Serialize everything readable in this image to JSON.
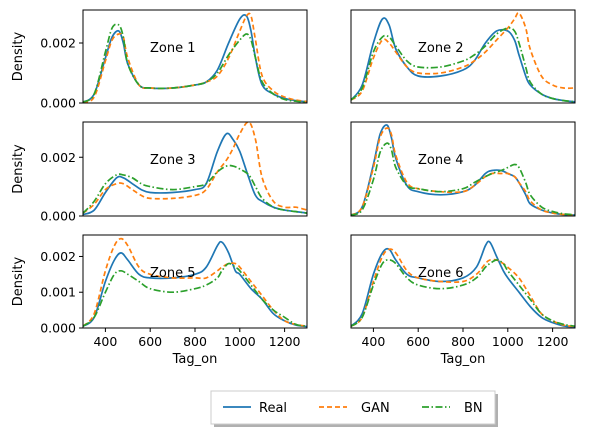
{
  "figure": {
    "ylabel": "Density",
    "xlabel": "Tag_on"
  },
  "legend": {
    "placement": "bottom-center",
    "items": [
      {
        "label": "Real",
        "color": "#1f77b4",
        "style": "solid"
      },
      {
        "label": "GAN",
        "color": "#ff7f0e",
        "style": "dashed"
      },
      {
        "label": "BN",
        "color": "#2ca02c",
        "style": "dashdot"
      }
    ]
  },
  "chart_data": [
    {
      "type": "line",
      "title": "Zone 1",
      "xlim": [
        300,
        1300
      ],
      "ylim": [
        0,
        0.0031
      ],
      "yticks": [
        0,
        0.002
      ],
      "ytick_labels": [
        "0.000",
        "0.002"
      ],
      "x": [
        300,
        350,
        400,
        430,
        460,
        480,
        500,
        550,
        600,
        700,
        800,
        850,
        900,
        950,
        1000,
        1030,
        1050,
        1070,
        1100,
        1150,
        1200,
        1250,
        1300
      ],
      "series": [
        {
          "name": "Real",
          "values": [
            3e-05,
            0.0003,
            0.0015,
            0.0022,
            0.0024,
            0.002,
            0.0013,
            0.0006,
            0.0005,
            0.0005,
            0.0006,
            0.0007,
            0.0011,
            0.002,
            0.0028,
            0.0029,
            0.0024,
            0.0015,
            0.0006,
            0.0003,
            0.00015,
            8e-05,
            4e-05
          ]
        },
        {
          "name": "GAN",
          "values": [
            3e-05,
            0.0002,
            0.0014,
            0.0021,
            0.0023,
            0.0022,
            0.0015,
            0.0006,
            0.0005,
            0.0005,
            0.0006,
            0.0007,
            0.0009,
            0.0015,
            0.0024,
            0.0029,
            0.0029,
            0.0021,
            0.0009,
            0.0004,
            0.0002,
            0.0001,
            5e-05
          ]
        },
        {
          "name": "BN",
          "values": [
            3e-05,
            0.0003,
            0.0017,
            0.0025,
            0.0026,
            0.0022,
            0.0013,
            0.0006,
            0.0005,
            0.0005,
            0.0006,
            0.0007,
            0.001,
            0.0016,
            0.0021,
            0.0023,
            0.0021,
            0.0015,
            0.0007,
            0.0003,
            0.00012,
            6e-05,
            3e-05
          ]
        }
      ]
    },
    {
      "type": "line",
      "title": "Zone 2",
      "xlim": [
        300,
        1300
      ],
      "ylim": [
        0,
        0.0031
      ],
      "yticks": [],
      "ytick_labels": [],
      "x": [
        300,
        350,
        400,
        440,
        470,
        500,
        550,
        600,
        700,
        800,
        850,
        900,
        950,
        1000,
        1030,
        1050,
        1080,
        1100,
        1150,
        1200,
        1250,
        1300
      ],
      "series": [
        {
          "name": "Real",
          "values": [
            0.0001,
            0.0006,
            0.002,
            0.0028,
            0.0026,
            0.0018,
            0.0012,
            0.0009,
            0.0009,
            0.0011,
            0.0014,
            0.002,
            0.0024,
            0.0024,
            0.0021,
            0.0016,
            0.0009,
            0.0006,
            0.0003,
            0.00015,
            8e-05,
            4e-05
          ]
        },
        {
          "name": "GAN",
          "values": [
            0.0001,
            0.0004,
            0.0015,
            0.0021,
            0.002,
            0.0017,
            0.0012,
            0.001,
            0.001,
            0.0012,
            0.0014,
            0.0017,
            0.0021,
            0.0025,
            0.0028,
            0.003,
            0.0025,
            0.0018,
            0.0009,
            0.0006,
            0.0005,
            0.0005
          ]
        },
        {
          "name": "BN",
          "values": [
            0.0001,
            0.0005,
            0.0017,
            0.0022,
            0.0022,
            0.0019,
            0.0014,
            0.0012,
            0.0012,
            0.0014,
            0.0016,
            0.0019,
            0.0023,
            0.0025,
            0.0024,
            0.002,
            0.0012,
            0.0007,
            0.0003,
            0.00015,
            8e-05,
            4e-05
          ]
        }
      ]
    },
    {
      "type": "line",
      "title": "Zone 3",
      "xlim": [
        300,
        1300
      ],
      "ylim": [
        0,
        0.0032
      ],
      "yticks": [
        0,
        0.002
      ],
      "ytick_labels": [
        "0.000",
        "0.002"
      ],
      "x": [
        300,
        350,
        400,
        450,
        480,
        520,
        560,
        600,
        700,
        800,
        850,
        900,
        940,
        970,
        1000,
        1040,
        1070,
        1100,
        1150,
        1200,
        1250,
        1300
      ],
      "series": [
        {
          "name": "Real",
          "values": [
            5e-05,
            0.0002,
            0.0008,
            0.0013,
            0.0013,
            0.0011,
            0.0009,
            0.0008,
            0.0008,
            0.0009,
            0.0011,
            0.0022,
            0.0028,
            0.0026,
            0.0022,
            0.0013,
            0.0007,
            0.0005,
            0.0003,
            0.0002,
            0.00015,
            0.0001
          ]
        },
        {
          "name": "GAN",
          "values": [
            0.0001,
            0.0004,
            0.0009,
            0.0011,
            0.0011,
            0.0009,
            0.0007,
            0.0006,
            0.0006,
            0.0007,
            0.0009,
            0.0015,
            0.0019,
            0.0023,
            0.0028,
            0.0032,
            0.0026,
            0.0013,
            0.0005,
            0.0003,
            0.0003,
            0.0002
          ]
        },
        {
          "name": "BN",
          "values": [
            0.0001,
            0.0005,
            0.0011,
            0.0014,
            0.0014,
            0.0013,
            0.0011,
            0.001,
            0.0009,
            0.001,
            0.0011,
            0.0015,
            0.0017,
            0.0017,
            0.0016,
            0.0014,
            0.001,
            0.0006,
            0.0003,
            0.0002,
            0.00015,
            0.0001
          ]
        }
      ]
    },
    {
      "type": "line",
      "title": "Zone 4",
      "xlim": [
        300,
        1300
      ],
      "ylim": [
        0,
        0.0031
      ],
      "yticks": [],
      "ytick_labels": [],
      "x": [
        300,
        350,
        400,
        430,
        460,
        480,
        500,
        550,
        600,
        700,
        800,
        850,
        900,
        930,
        970,
        1000,
        1030,
        1050,
        1080,
        1100,
        1150,
        1200,
        1250,
        1300
      ],
      "series": [
        {
          "name": "Real",
          "values": [
            3e-05,
            0.0003,
            0.0017,
            0.0027,
            0.003,
            0.0026,
            0.0019,
            0.001,
            0.0008,
            0.0007,
            0.0008,
            0.001,
            0.0014,
            0.0015,
            0.0015,
            0.0014,
            0.0013,
            0.0011,
            0.0007,
            0.0004,
            0.0002,
            0.0001,
            5e-05,
            3e-05
          ]
        },
        {
          "name": "GAN",
          "values": [
            3e-05,
            0.0003,
            0.0016,
            0.0026,
            0.0029,
            0.0027,
            0.002,
            0.0011,
            0.0009,
            0.0008,
            0.0008,
            0.001,
            0.0013,
            0.0014,
            0.0014,
            0.0014,
            0.0013,
            0.0011,
            0.0008,
            0.0005,
            0.0002,
            0.0001,
            5e-05,
            3e-05
          ]
        },
        {
          "name": "BN",
          "values": [
            3e-05,
            0.0002,
            0.0012,
            0.0021,
            0.0024,
            0.0022,
            0.0016,
            0.001,
            0.0009,
            0.0008,
            0.0009,
            0.0011,
            0.0013,
            0.0014,
            0.0015,
            0.0016,
            0.0017,
            0.0016,
            0.0011,
            0.0007,
            0.0003,
            0.00015,
            7e-05,
            4e-05
          ]
        }
      ]
    },
    {
      "type": "line",
      "title": "Zone 5",
      "xlim": [
        300,
        1300
      ],
      "ylim": [
        0,
        0.0026
      ],
      "yticks": [
        0,
        0.001,
        0.002
      ],
      "ytick_labels": [
        "0.000",
        "0.001",
        "0.002"
      ],
      "x": [
        300,
        350,
        400,
        440,
        470,
        500,
        550,
        600,
        700,
        800,
        850,
        900,
        920,
        950,
        980,
        1000,
        1050,
        1100,
        1150,
        1200,
        1250,
        1300
      ],
      "series": [
        {
          "name": "Real",
          "values": [
            5e-05,
            0.0003,
            0.0013,
            0.0019,
            0.0021,
            0.0019,
            0.0015,
            0.0014,
            0.0014,
            0.0015,
            0.0017,
            0.0023,
            0.0024,
            0.0021,
            0.0016,
            0.0015,
            0.0011,
            0.0008,
            0.0004,
            0.0002,
            8e-05,
            4e-05
          ]
        },
        {
          "name": "GAN",
          "values": [
            5e-05,
            0.0004,
            0.0016,
            0.0023,
            0.0025,
            0.0023,
            0.0017,
            0.0015,
            0.0014,
            0.0014,
            0.0014,
            0.0016,
            0.0017,
            0.0018,
            0.0018,
            0.0017,
            0.0013,
            0.0009,
            0.0005,
            0.0002,
            0.0001,
            5e-05
          ]
        },
        {
          "name": "BN",
          "values": [
            5e-05,
            0.0003,
            0.001,
            0.0015,
            0.0016,
            0.0015,
            0.0013,
            0.0011,
            0.001,
            0.0011,
            0.0012,
            0.0014,
            0.0016,
            0.0018,
            0.0017,
            0.0016,
            0.0012,
            0.0008,
            0.0005,
            0.0003,
            0.0001,
            5e-05
          ]
        }
      ]
    },
    {
      "type": "line",
      "title": "Zone 6",
      "xlim": [
        300,
        1300
      ],
      "ylim": [
        0,
        0.0026
      ],
      "yticks": [],
      "ytick_labels": [],
      "x": [
        300,
        350,
        400,
        440,
        470,
        500,
        550,
        600,
        700,
        800,
        860,
        900,
        920,
        950,
        980,
        1000,
        1050,
        1100,
        1150,
        1200,
        1250,
        1300
      ],
      "series": [
        {
          "name": "Real",
          "values": [
            5e-05,
            0.0004,
            0.0015,
            0.0021,
            0.0022,
            0.0019,
            0.0015,
            0.0014,
            0.0013,
            0.0014,
            0.0017,
            0.0023,
            0.0024,
            0.002,
            0.0016,
            0.0014,
            0.001,
            0.0006,
            0.0003,
            0.00015,
            6e-05,
            3e-05
          ]
        },
        {
          "name": "GAN",
          "values": [
            5e-05,
            0.0003,
            0.0013,
            0.002,
            0.0022,
            0.0021,
            0.0016,
            0.0014,
            0.0013,
            0.0013,
            0.0015,
            0.0018,
            0.0019,
            0.0019,
            0.0018,
            0.0017,
            0.0014,
            0.0009,
            0.0004,
            0.0002,
            8e-05,
            4e-05
          ]
        },
        {
          "name": "BN",
          "values": [
            5e-05,
            0.0003,
            0.0012,
            0.0018,
            0.0019,
            0.0018,
            0.0014,
            0.0012,
            0.0011,
            0.0012,
            0.0014,
            0.0017,
            0.0018,
            0.0019,
            0.0018,
            0.0016,
            0.0012,
            0.0008,
            0.0004,
            0.0002,
            0.0001,
            5e-05
          ]
        }
      ]
    }
  ]
}
